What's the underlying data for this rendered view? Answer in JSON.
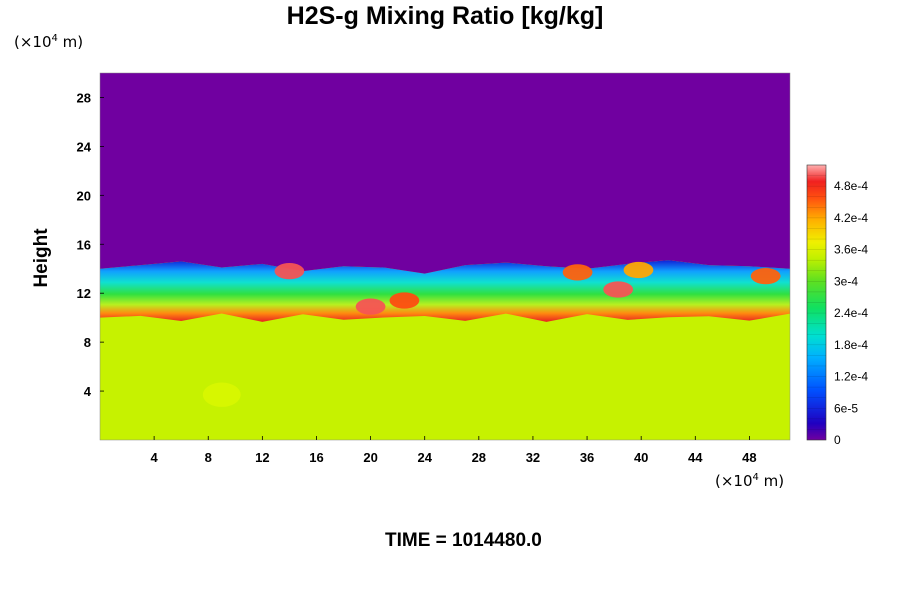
{
  "chart_data": {
    "type": "heatmap",
    "title": "H2S-g Mixing Ratio [kg/kg]",
    "ylabel": "Height",
    "xlabel": "",
    "x_unit": {
      "prefix": "(×10",
      "exp": "4",
      "suffix": " m)"
    },
    "y_unit": {
      "prefix": "(×10",
      "exp": "4",
      "suffix": " m)"
    },
    "xlim": [
      0,
      51
    ],
    "ylim": [
      0,
      30
    ],
    "x_ticks": [
      4,
      8,
      12,
      16,
      20,
      24,
      28,
      32,
      36,
      40,
      44,
      48
    ],
    "y_ticks": [
      4,
      8,
      12,
      16,
      20,
      24,
      28
    ],
    "colorbar": {
      "range": [
        0,
        0.00052
      ],
      "tick_values": [
        0,
        6e-05,
        0.00012,
        0.00018,
        0.00024,
        0.0003,
        0.00036,
        0.00042,
        0.00048
      ],
      "tick_labels": [
        "0",
        "6e-5",
        "1.2e-4",
        "1.8e-4",
        "2.4e-4",
        "3e-4",
        "3.6e-4",
        "4.2e-4",
        "4.8e-4"
      ]
    },
    "regions": [
      {
        "name": "upper",
        "y_range": [
          14.5,
          30
        ],
        "value": 0
      },
      {
        "name": "lower",
        "y_range": [
          0,
          10
        ],
        "value": 0.00035
      }
    ],
    "boundary_top": [
      [
        0,
        14.0
      ],
      [
        3,
        14.3
      ],
      [
        6,
        14.6
      ],
      [
        9,
        14.1
      ],
      [
        12,
        14.4
      ],
      [
        15,
        13.8
      ],
      [
        18,
        14.2
      ],
      [
        21,
        14.1
      ],
      [
        24,
        13.6
      ],
      [
        27,
        14.3
      ],
      [
        30,
        14.5
      ],
      [
        33,
        14.2
      ],
      [
        36,
        14.0
      ],
      [
        39,
        14.4
      ],
      [
        42,
        14.7
      ],
      [
        45,
        14.3
      ],
      [
        48,
        14.2
      ],
      [
        51,
        14.0
      ]
    ],
    "hotspots": [
      {
        "x": 14.0,
        "y": 13.8,
        "value": 0.0005
      },
      {
        "x": 20.0,
        "y": 10.9,
        "value": 0.0005
      },
      {
        "x": 22.5,
        "y": 11.4,
        "value": 0.00046
      },
      {
        "x": 35.3,
        "y": 13.7,
        "value": 0.00045
      },
      {
        "x": 38.3,
        "y": 12.3,
        "value": 0.0005
      },
      {
        "x": 39.8,
        "y": 13.9,
        "value": 0.00042
      },
      {
        "x": 49.2,
        "y": 13.4,
        "value": 0.00045
      },
      {
        "x": 9.0,
        "y": 3.7,
        "value": 0.00037
      }
    ],
    "time": "TIME = 1014480.0"
  }
}
